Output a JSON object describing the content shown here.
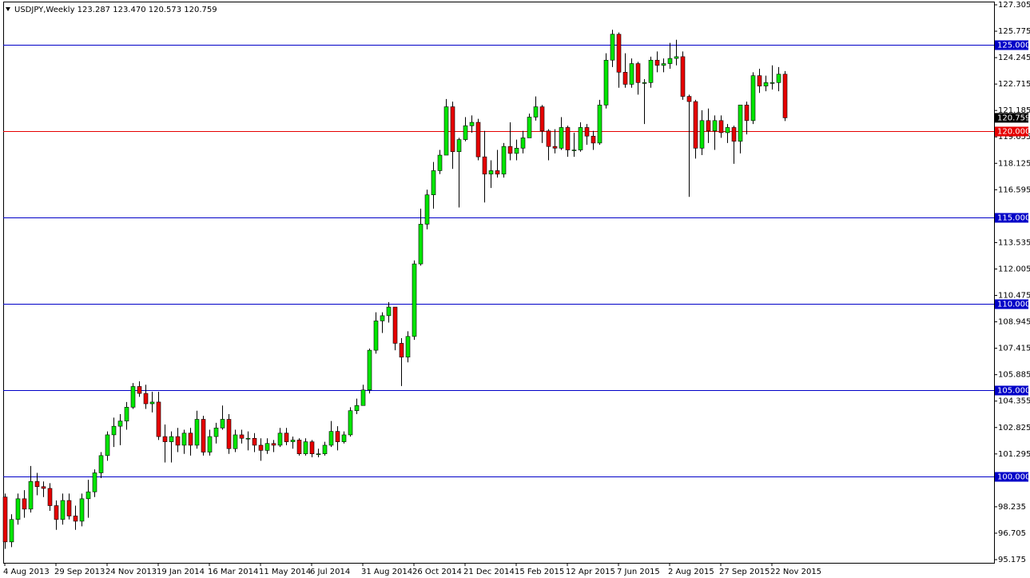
{
  "chart_data": {
    "type": "candlestick",
    "title": "USDJPY,Weekly  123.287 123.470 120.573 120.759",
    "categories": [
      "4 Aug 2013",
      null,
      null,
      null,
      null,
      null,
      null,
      null,
      "29 Sep 2013",
      null,
      null,
      null,
      null,
      null,
      null,
      null,
      "24 Nov 2013",
      null,
      null,
      null,
      null,
      null,
      null,
      null,
      "19 Jan 2014",
      null,
      null,
      null,
      null,
      null,
      null,
      null,
      "16 Mar 2014",
      null,
      null,
      null,
      null,
      null,
      null,
      null,
      "11 May 2014",
      null,
      null,
      null,
      null,
      null,
      null,
      null,
      "6 Jul 2014",
      null,
      null,
      null,
      null,
      null,
      null,
      null,
      "31 Aug 2014",
      null,
      null,
      null,
      null,
      null,
      null,
      null,
      "26 Oct 2014",
      null,
      null,
      null,
      null,
      null,
      null,
      null,
      "21 Dec 2014",
      null,
      null,
      null,
      null,
      null,
      null,
      null,
      "15 Feb 2015",
      null,
      null,
      null,
      null,
      null,
      null,
      null,
      "12 Apr 2015",
      null,
      null,
      null,
      null,
      null,
      null,
      null,
      "7 Jun 2015",
      null,
      null,
      null,
      null,
      null,
      null,
      null,
      "2 Aug 2015",
      null,
      null,
      null,
      null,
      null,
      null,
      null,
      "27 Sep 2015",
      null,
      null,
      null,
      null,
      null,
      null,
      null,
      "22 Nov 2015",
      null,
      null
    ],
    "open": [
      98.8,
      96.2,
      97.5,
      98.7,
      98.1,
      99.7,
      99.4,
      99.3,
      98.3,
      97.5,
      98.6,
      97.7,
      97.4,
      98.7,
      99.1,
      100.2,
      101.2,
      102.4,
      102.9,
      103.2,
      104.0,
      105.2,
      104.8,
      104.2,
      104.3,
      102.3,
      102.0,
      102.3,
      101.8,
      102.5,
      101.8,
      103.3,
      101.4,
      102.3,
      102.8,
      103.3,
      101.6,
      102.4,
      102.2,
      102.2,
      101.8,
      101.5,
      101.9,
      101.8,
      102.5,
      102.0,
      102.1,
      101.3,
      102.0,
      101.3,
      101.3,
      101.8,
      102.6,
      102.0,
      102.4,
      103.8,
      104.1,
      105.0,
      107.3,
      109.0,
      109.3,
      109.8,
      107.7,
      106.9,
      108.1,
      112.3,
      114.6,
      116.3,
      117.7,
      118.6,
      121.4,
      118.8,
      119.5,
      120.3,
      120.5,
      118.5,
      117.5,
      117.7,
      117.5,
      119.1,
      118.7,
      119.0,
      119.6,
      120.8,
      121.4,
      120.0,
      119.1,
      119.0,
      120.2,
      118.9,
      118.9,
      120.2,
      119.7,
      119.3,
      121.5,
      124.1,
      125.6,
      123.4,
      122.7,
      123.9,
      122.8,
      122.8,
      124.1,
      123.8,
      123.9,
      124.2,
      124.3,
      122.0,
      121.7,
      119.0,
      120.6,
      120.0,
      120.6,
      119.9,
      120.2,
      119.4,
      121.5,
      120.6,
      123.2,
      122.6,
      122.8,
      122.8,
      123.287
    ],
    "high": [
      99.0,
      97.8,
      99.0,
      99.2,
      100.6,
      100.2,
      99.7,
      99.6,
      98.6,
      99.0,
      99.0,
      98.3,
      99.0,
      99.8,
      100.4,
      101.4,
      102.6,
      103.4,
      103.6,
      104.3,
      105.4,
      105.5,
      105.3,
      104.9,
      104.9,
      103.0,
      102.6,
      102.8,
      102.7,
      102.8,
      103.8,
      103.5,
      102.7,
      103.1,
      104.1,
      103.6,
      102.7,
      102.7,
      102.6,
      102.5,
      102.2,
      102.2,
      102.1,
      102.8,
      102.8,
      102.3,
      102.2,
      102.2,
      102.1,
      101.6,
      102.0,
      103.2,
      102.9,
      102.6,
      104.0,
      104.5,
      105.3,
      107.4,
      109.5,
      109.5,
      110.09,
      109.8,
      108.0,
      108.4,
      112.5,
      115.5,
      116.6,
      118.2,
      118.9,
      121.85,
      121.7,
      119.6,
      120.8,
      120.9,
      120.7,
      120.0,
      118.3,
      118.9,
      119.3,
      120.5,
      119.5,
      120.0,
      121.0,
      122.0,
      121.5,
      120.1,
      120.1,
      120.8,
      120.3,
      119.9,
      120.5,
      120.4,
      120.0,
      121.8,
      124.5,
      125.86,
      125.7,
      124.5,
      124.2,
      124.0,
      123.0,
      124.3,
      124.6,
      124.2,
      125.1,
      125.28,
      124.6,
      122.1,
      121.8,
      121.2,
      121.3,
      120.9,
      120.9,
      120.4,
      120.3,
      121.5,
      121.7,
      123.4,
      123.6,
      123.2,
      123.8,
      123.7,
      123.47
    ],
    "low": [
      95.8,
      95.9,
      97.2,
      97.6,
      97.9,
      98.9,
      98.8,
      98.0,
      96.9,
      97.2,
      97.5,
      96.9,
      97.1,
      97.6,
      98.8,
      99.9,
      100.9,
      101.7,
      101.8,
      102.7,
      103.9,
      104.6,
      103.9,
      103.7,
      102.1,
      100.8,
      100.8,
      101.4,
      101.3,
      101.2,
      101.6,
      101.2,
      101.2,
      101.9,
      102.7,
      101.3,
      101.4,
      101.9,
      101.5,
      101.4,
      100.9,
      101.3,
      101.4,
      101.7,
      101.8,
      101.6,
      101.2,
      101.2,
      101.1,
      101.1,
      101.2,
      101.7,
      101.5,
      101.9,
      102.3,
      103.6,
      104.1,
      104.8,
      107.1,
      108.3,
      108.9,
      107.3,
      105.23,
      106.6,
      107.9,
      112.2,
      114.3,
      115.5,
      117.5,
      118.6,
      117.8,
      115.57,
      119.4,
      119.9,
      118.3,
      115.86,
      116.7,
      117.3,
      117.3,
      118.3,
      118.3,
      118.7,
      119.6,
      120.6,
      119.3,
      118.3,
      118.7,
      118.9,
      118.5,
      118.5,
      118.8,
      119.2,
      118.9,
      119.2,
      121.3,
      123.7,
      122.5,
      122.5,
      122.5,
      122.1,
      120.4,
      122.5,
      123.4,
      123.4,
      123.6,
      123.8,
      121.8,
      116.18,
      118.4,
      118.6,
      119.3,
      118.9,
      119.6,
      119.3,
      118.1,
      118.7,
      119.8,
      120.4,
      122.2,
      122.3,
      122.4,
      122.3,
      120.573
    ],
    "close": [
      96.2,
      97.5,
      98.7,
      98.1,
      99.7,
      99.4,
      99.3,
      98.3,
      97.5,
      98.6,
      97.7,
      97.4,
      98.7,
      99.1,
      100.2,
      101.2,
      102.4,
      102.9,
      103.2,
      104.0,
      105.2,
      104.8,
      104.2,
      104.3,
      102.3,
      102.0,
      102.3,
      101.8,
      102.5,
      101.8,
      103.3,
      101.4,
      102.3,
      102.8,
      103.3,
      101.6,
      102.4,
      102.2,
      102.2,
      101.8,
      101.5,
      101.9,
      101.8,
      102.5,
      102.0,
      102.1,
      101.3,
      102.0,
      101.3,
      101.3,
      101.8,
      102.6,
      102.0,
      102.4,
      103.8,
      104.1,
      105.0,
      107.3,
      109.0,
      109.3,
      109.8,
      107.7,
      106.9,
      108.1,
      112.3,
      114.6,
      116.3,
      117.7,
      118.6,
      121.4,
      118.8,
      119.5,
      120.3,
      120.5,
      118.5,
      117.5,
      117.7,
      117.5,
      119.1,
      118.7,
      119.0,
      119.6,
      120.8,
      121.4,
      120.0,
      119.1,
      119.0,
      120.2,
      118.9,
      118.9,
      120.2,
      119.7,
      119.3,
      121.5,
      124.1,
      125.6,
      123.4,
      122.7,
      123.9,
      122.8,
      122.8,
      124.1,
      123.8,
      123.9,
      124.2,
      124.3,
      122.0,
      121.7,
      119.0,
      120.6,
      120.0,
      120.6,
      119.9,
      120.2,
      119.4,
      121.5,
      120.6,
      123.2,
      122.6,
      122.8,
      122.8,
      123.287,
      120.759
    ],
    "up_color": "#00e600",
    "down_color": "#e60000",
    "ylim": [
      94.99,
      127.49
    ],
    "yticks": [
      127.305,
      125.775,
      124.245,
      122.715,
      121.185,
      119.655,
      118.125,
      116.595,
      113.535,
      112.005,
      110.475,
      108.945,
      107.415,
      105.885,
      104.355,
      102.825,
      101.295,
      98.235,
      96.705,
      95.175
    ],
    "hlines": [
      {
        "value": 125,
        "label": "125.000",
        "color": "#0000c8"
      },
      {
        "value": 120,
        "label": "120.000",
        "color": "#e60000"
      },
      {
        "value": 115,
        "label": "115.000",
        "color": "#0000c8"
      },
      {
        "value": 110,
        "label": "110.000",
        "color": "#0000c8"
      },
      {
        "value": 105,
        "label": "105.000",
        "color": "#0000c8"
      },
      {
        "value": 100,
        "label": "100.000",
        "color": "#0000c8"
      }
    ],
    "last_price": 120.759
  }
}
